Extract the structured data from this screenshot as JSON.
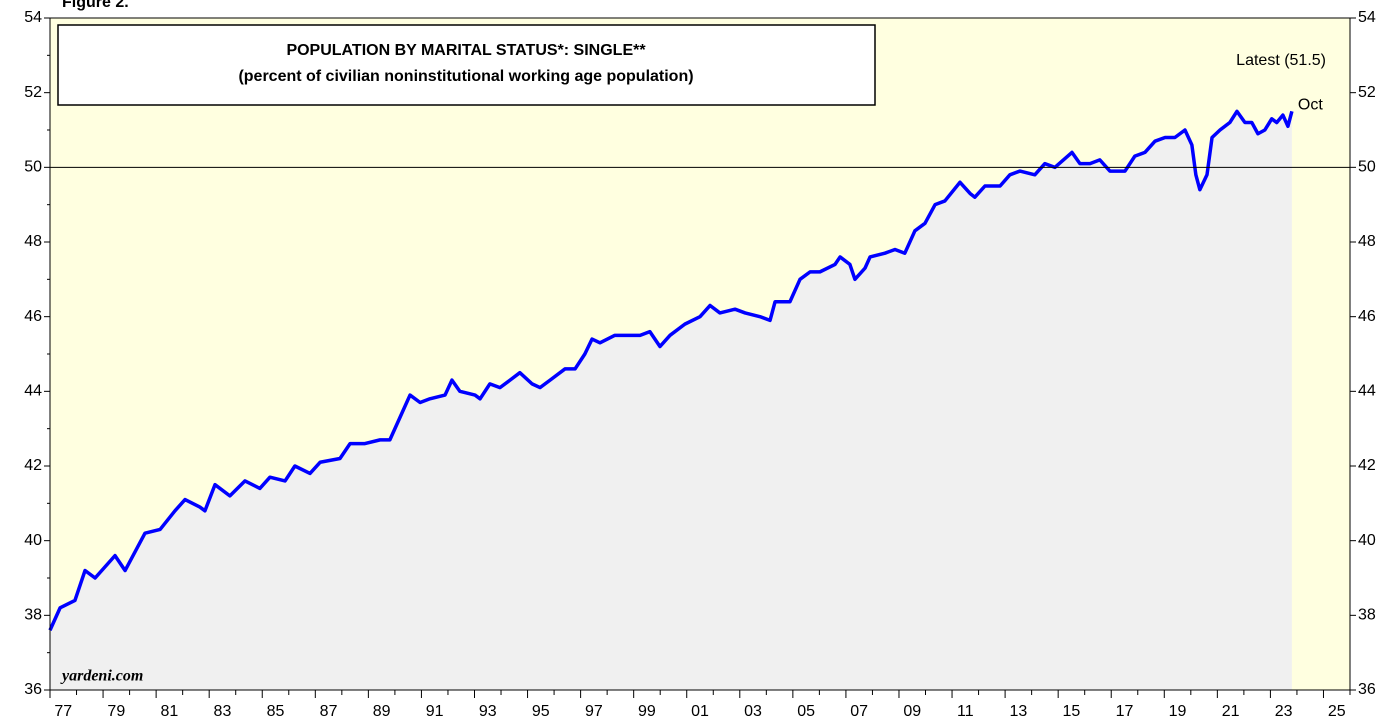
{
  "chart_data": {
    "type": "area-line",
    "figure_label": "Figure 2.",
    "title": "POPULATION BY MARITAL STATUS*: SINGLE**",
    "subtitle": "(percent of civilian noninstitutional working age population)",
    "latest_label": "Latest (51.5)",
    "end_label": "Oct",
    "source": "yardeni.com",
    "x": [
      1977.0,
      1977.38,
      1977.94,
      1978.32,
      1978.7,
      1979.45,
      1979.83,
      1980.58,
      1981.15,
      1981.71,
      1982.09,
      1982.65,
      1982.84,
      1983.22,
      1983.78,
      1984.35,
      1984.91,
      1985.29,
      1985.86,
      1986.23,
      1986.8,
      1987.18,
      1987.93,
      1988.31,
      1988.87,
      1989.44,
      1989.81,
      1990.19,
      1990.57,
      1990.95,
      1991.32,
      1991.89,
      1992.15,
      1992.45,
      1993.02,
      1993.21,
      1993.58,
      1993.96,
      1994.34,
      1994.71,
      1995.17,
      1995.47,
      1995.85,
      1996.41,
      1996.79,
      1997.16,
      1997.43,
      1997.73,
      1998.29,
      1998.67,
      1999.24,
      1999.61,
      1999.99,
      2000.37,
      2000.93,
      2001.5,
      2001.88,
      2002.25,
      2002.82,
      2003.2,
      2003.76,
      2004.14,
      2004.33,
      2004.89,
      2005.27,
      2005.65,
      2006.02,
      2006.59,
      2006.78,
      2007.15,
      2007.34,
      2007.72,
      2007.91,
      2008.47,
      2008.85,
      2009.22,
      2009.6,
      2009.98,
      2010.36,
      2010.73,
      2011.3,
      2011.68,
      2011.86,
      2012.24,
      2012.81,
      2013.18,
      2013.56,
      2014.12,
      2014.5,
      2014.88,
      2015.52,
      2015.82,
      2016.2,
      2016.57,
      2016.95,
      2017.52,
      2017.89,
      2018.27,
      2018.65,
      2019.03,
      2019.4,
      2019.78,
      2020.04,
      2020.19,
      2020.34,
      2020.61,
      2020.8,
      2021.1,
      2021.47,
      2021.74,
      2022.04,
      2022.3,
      2022.53,
      2022.79,
      2023.05,
      2023.24,
      2023.47,
      2023.66,
      2023.81
    ],
    "series": [
      {
        "name": "Single",
        "color": "#0000ff",
        "fill": "#f0f0f0",
        "values": [
          37.6,
          38.2,
          38.4,
          39.2,
          39.0,
          39.6,
          39.2,
          40.2,
          40.3,
          40.8,
          41.1,
          40.9,
          40.8,
          41.5,
          41.2,
          41.6,
          41.4,
          41.7,
          41.6,
          42.0,
          41.8,
          42.1,
          42.2,
          42.6,
          42.6,
          42.7,
          42.7,
          43.3,
          43.9,
          43.7,
          43.8,
          43.9,
          44.3,
          44.0,
          43.9,
          43.8,
          44.2,
          44.1,
          44.3,
          44.5,
          44.2,
          44.1,
          44.3,
          44.6,
          44.6,
          45.0,
          45.4,
          45.3,
          45.5,
          45.5,
          45.5,
          45.6,
          45.2,
          45.5,
          45.8,
          46.0,
          46.3,
          46.1,
          46.2,
          46.1,
          46.0,
          45.9,
          46.4,
          46.4,
          47.0,
          47.2,
          47.2,
          47.4,
          47.6,
          47.4,
          47.0,
          47.3,
          47.6,
          47.7,
          47.8,
          47.7,
          48.3,
          48.5,
          49.0,
          49.1,
          49.6,
          49.3,
          49.2,
          49.5,
          49.5,
          49.8,
          49.9,
          49.8,
          50.1,
          50.0,
          50.4,
          50.1,
          50.1,
          50.2,
          49.9,
          49.9,
          50.3,
          50.4,
          50.7,
          50.8,
          50.8,
          51.0,
          50.6,
          49.8,
          49.4,
          49.8,
          50.8,
          51.0,
          51.2,
          51.5,
          51.2,
          51.2,
          50.9,
          51.0,
          51.3,
          51.2,
          51.4,
          51.1,
          51.5
        ]
      }
    ],
    "xlim": [
      1977,
      2026
    ],
    "xticks": [
      {
        "value": 1977,
        "label": "77"
      },
      {
        "value": 1979,
        "label": "79"
      },
      {
        "value": 1981,
        "label": "81"
      },
      {
        "value": 1983,
        "label": "83"
      },
      {
        "value": 1985,
        "label": "85"
      },
      {
        "value": 1987,
        "label": "87"
      },
      {
        "value": 1989,
        "label": "89"
      },
      {
        "value": 1991,
        "label": "91"
      },
      {
        "value": 1993,
        "label": "93"
      },
      {
        "value": 1995,
        "label": "95"
      },
      {
        "value": 1997,
        "label": "97"
      },
      {
        "value": 1999,
        "label": "99"
      },
      {
        "value": 2001,
        "label": "01"
      },
      {
        "value": 2003,
        "label": "03"
      },
      {
        "value": 2005,
        "label": "05"
      },
      {
        "value": 2007,
        "label": "07"
      },
      {
        "value": 2009,
        "label": "09"
      },
      {
        "value": 2011,
        "label": "11"
      },
      {
        "value": 2013,
        "label": "13"
      },
      {
        "value": 2015,
        "label": "15"
      },
      {
        "value": 2017,
        "label": "17"
      },
      {
        "value": 2019,
        "label": "19"
      },
      {
        "value": 2021,
        "label": "21"
      },
      {
        "value": 2023,
        "label": "23"
      },
      {
        "value": 2025,
        "label": "25"
      }
    ],
    "ylim": [
      36,
      54
    ],
    "yticks": [
      36,
      38,
      40,
      42,
      44,
      46,
      48,
      50,
      52,
      54
    ],
    "y2lim": [
      36,
      54
    ],
    "y2ticks": [
      36,
      38,
      40,
      42,
      44,
      46,
      48,
      50,
      52,
      54
    ],
    "hline": 50,
    "background": "#ffffe0"
  }
}
